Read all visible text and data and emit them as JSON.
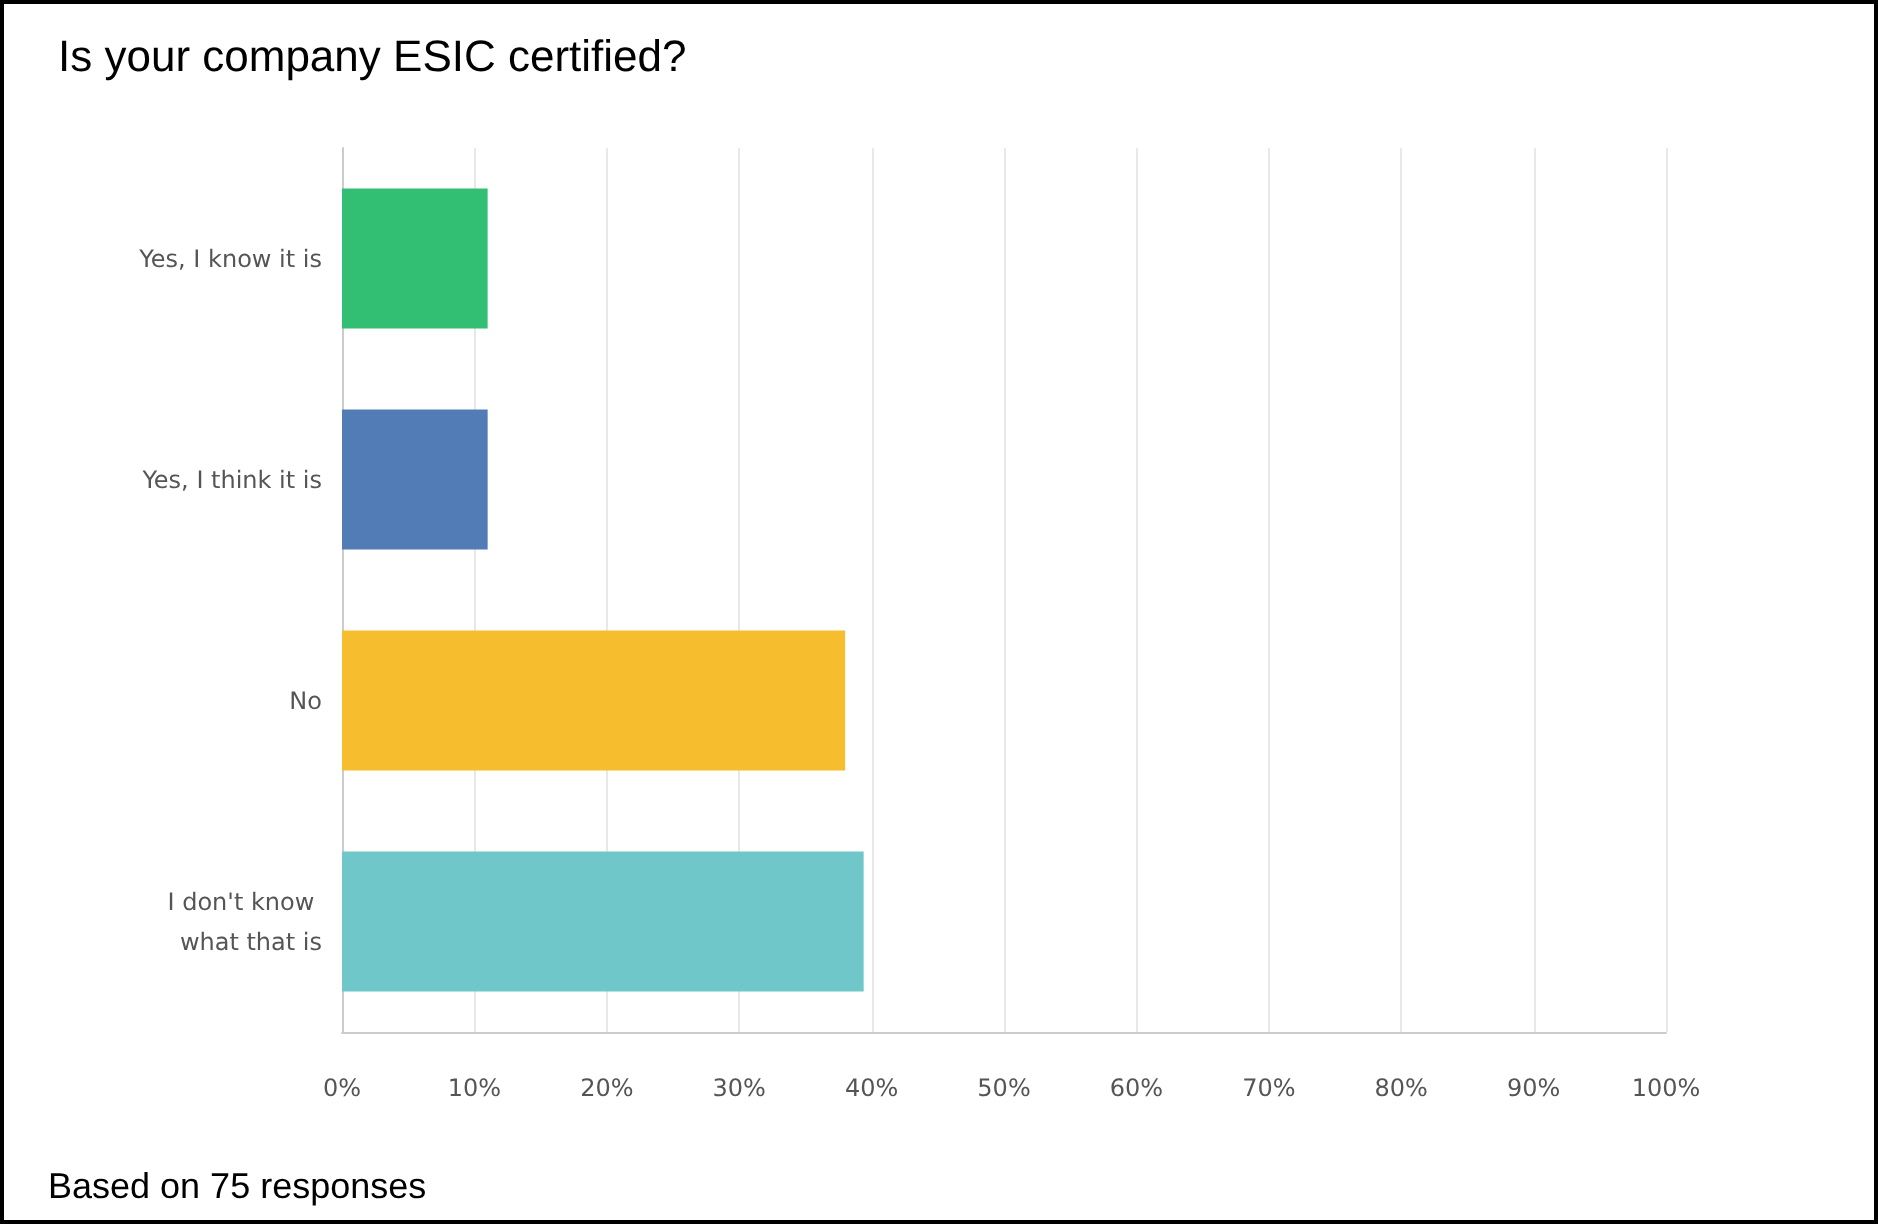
{
  "chart_data": {
    "type": "bar",
    "orientation": "horizontal",
    "title": "Is your company ESIC certified?",
    "categories": [
      "Yes, I know it is",
      "Yes, I think it is",
      "No",
      "I don't know what that is"
    ],
    "values": [
      11,
      11,
      38,
      39.4
    ],
    "colors": [
      "#32bf73",
      "#527cb6",
      "#f6bd2e",
      "#6fc7ca"
    ],
    "xlim": [
      0,
      100
    ],
    "xticks": [
      {
        "value": 0,
        "label": "0%"
      },
      {
        "value": 10,
        "label": "10%"
      },
      {
        "value": 20,
        "label": "20%"
      },
      {
        "value": 30,
        "label": "30%"
      },
      {
        "value": 40,
        "label": "40%"
      },
      {
        "value": 50,
        "label": "50%"
      },
      {
        "value": 60,
        "label": "60%"
      },
      {
        "value": 70,
        "label": "70%"
      },
      {
        "value": 80,
        "label": "80%"
      },
      {
        "value": 90,
        "label": "90%"
      },
      {
        "value": 100,
        "label": "100%"
      }
    ],
    "grid": "x",
    "annotations": [
      "Based on 75 responses"
    ]
  }
}
